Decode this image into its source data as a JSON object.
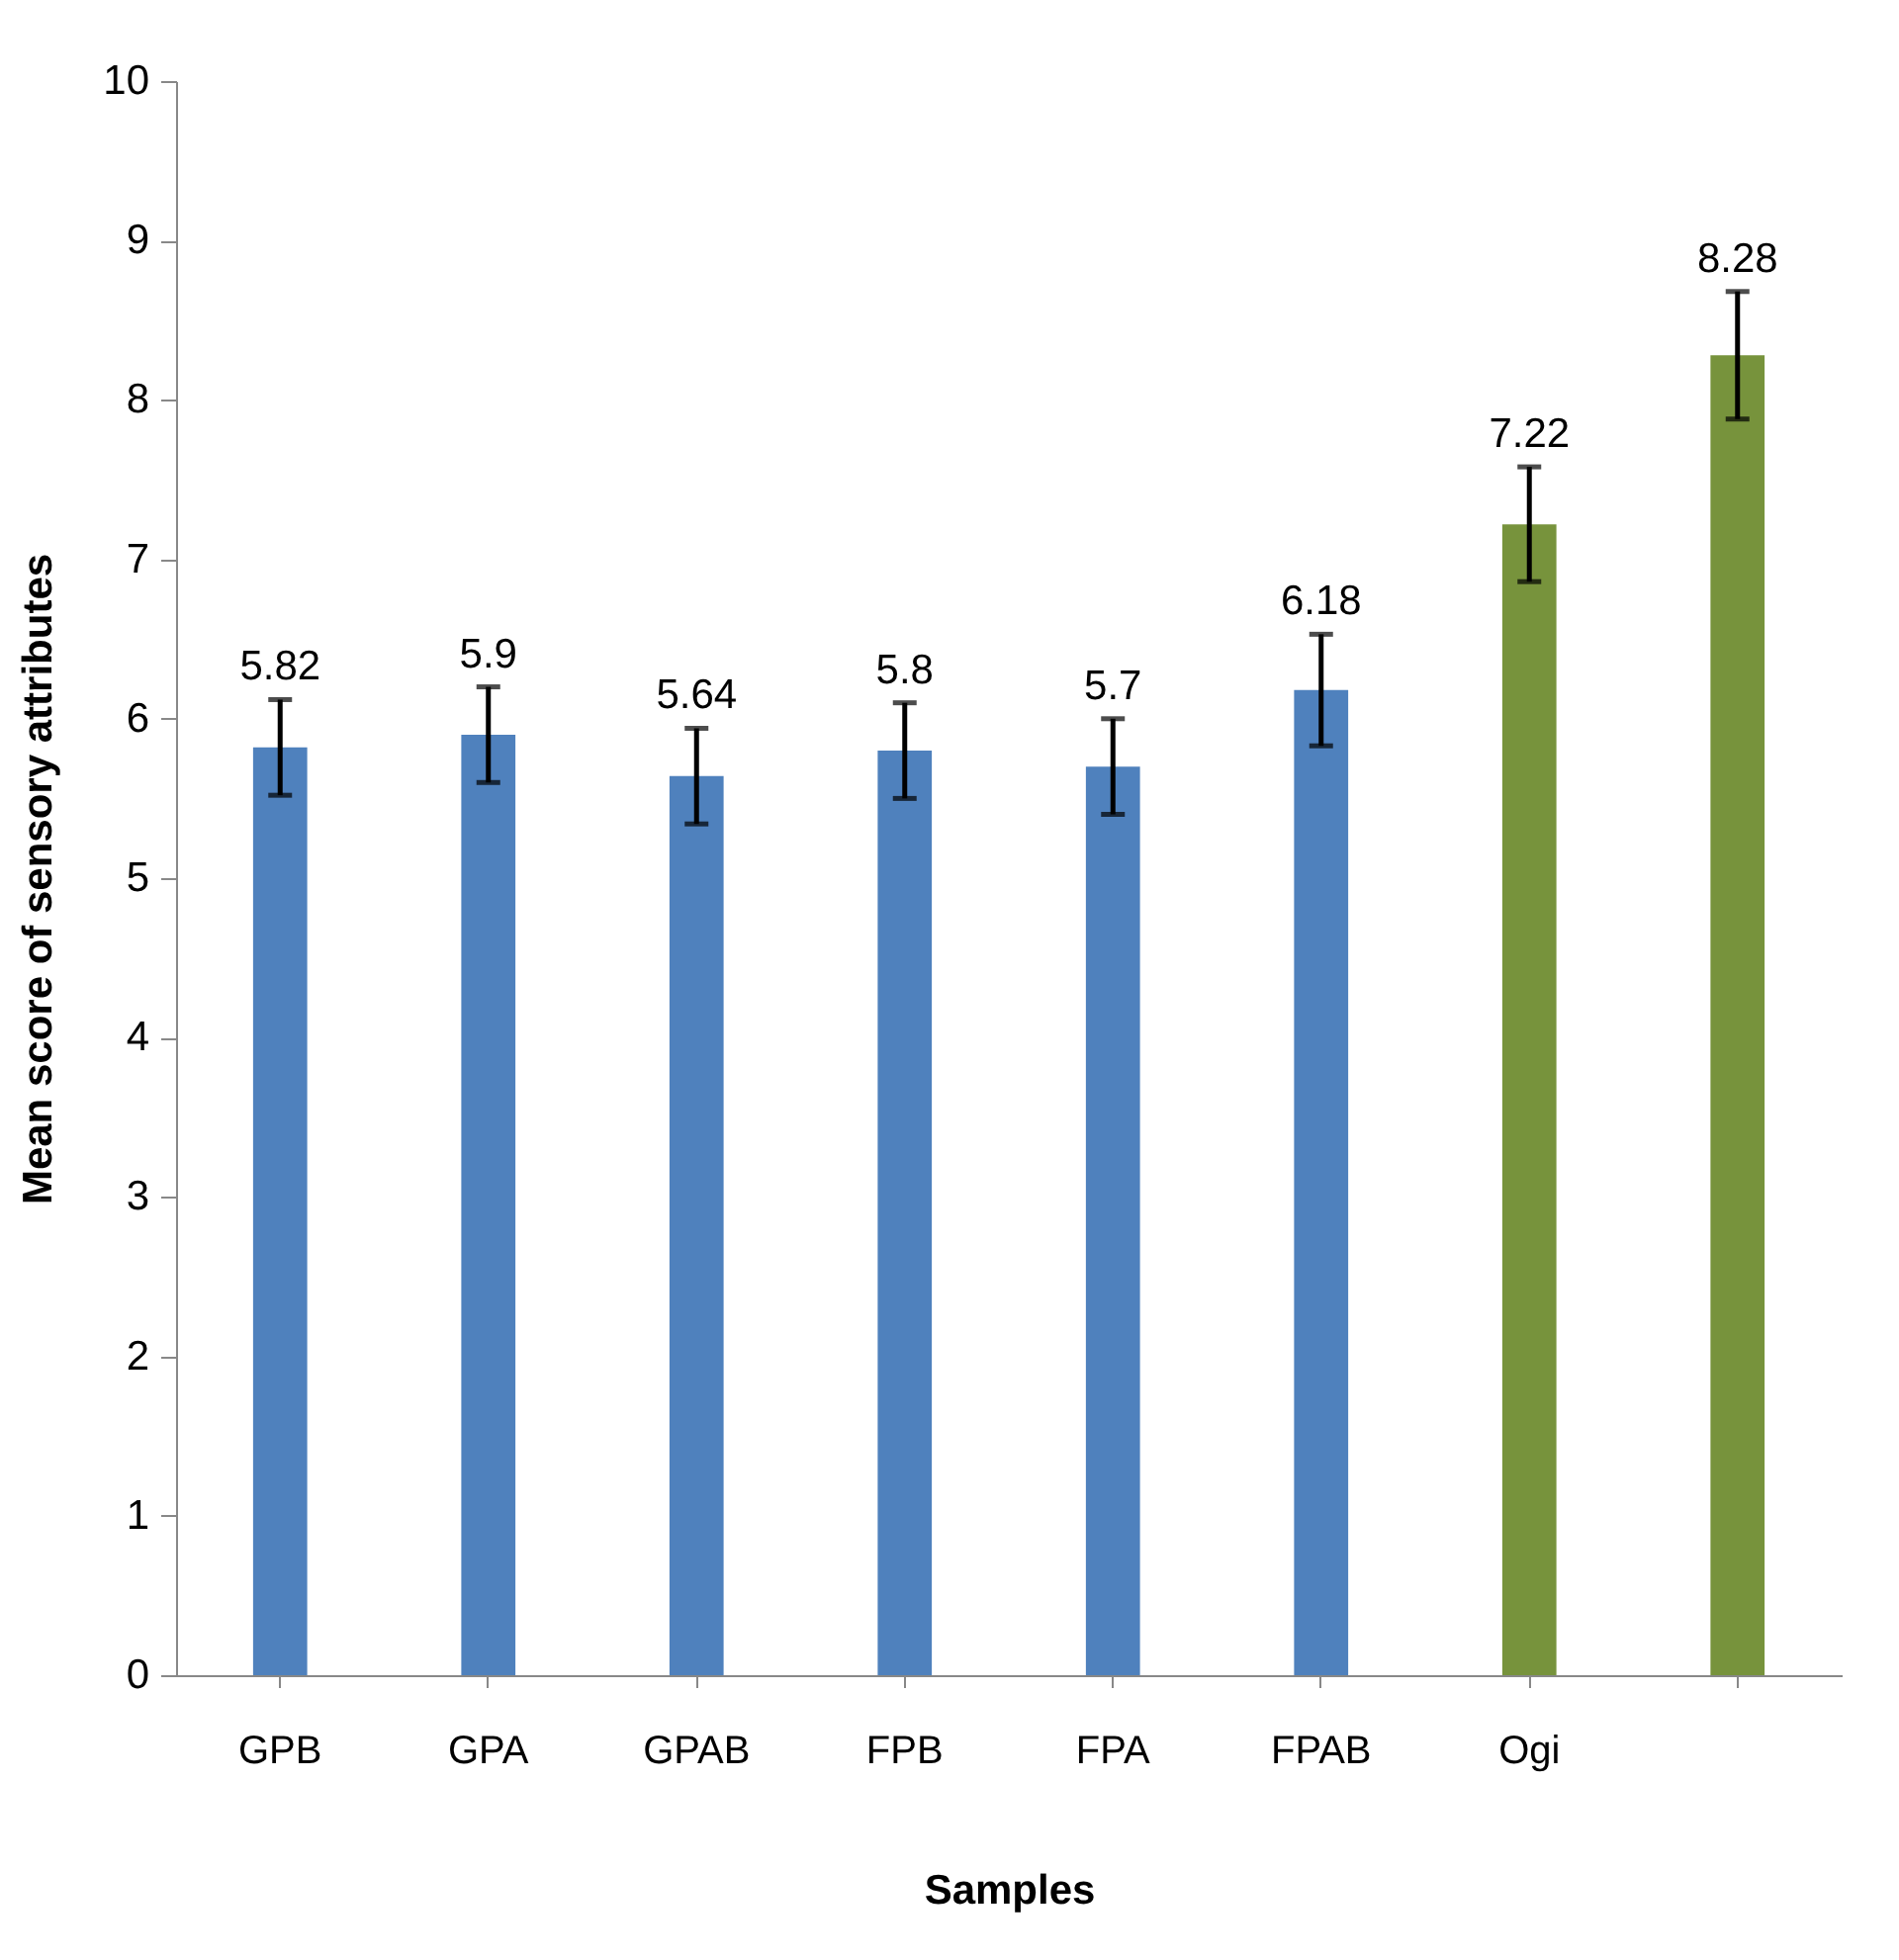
{
  "chart_data": {
    "type": "bar",
    "xlabel": "Samples",
    "ylabel": "Mean score of sensory attributes",
    "categories": [
      "GPB",
      "GPA",
      "GPAB",
      "FPB",
      "FPA",
      "FPAB",
      "Ogi",
      null
    ],
    "values": [
      5.82,
      5.9,
      5.64,
      5.8,
      5.7,
      6.18,
      7.22,
      8.28
    ],
    "errors": [
      0.3,
      0.3,
      0.3,
      0.3,
      0.3,
      0.35,
      0.36,
      0.4
    ],
    "colors": [
      "#4f81bd",
      "#4f81bd",
      "#4f81bd",
      "#4f81bd",
      "#4f81bd",
      "#4f81bd",
      "#77933c",
      "#77933c"
    ],
    "ylim": [
      0,
      10
    ],
    "yticks": [
      0,
      1,
      2,
      3,
      4,
      5,
      6,
      7,
      8,
      9,
      10
    ],
    "grid": false,
    "data_labels": true
  }
}
